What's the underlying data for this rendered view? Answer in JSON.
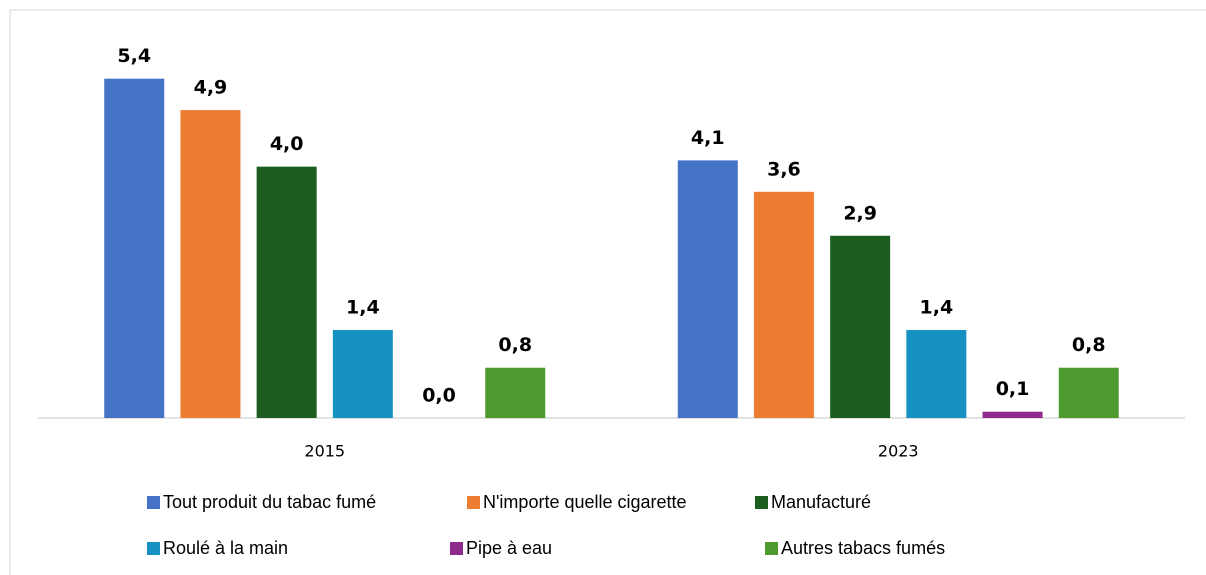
{
  "chart_data": {
    "type": "bar",
    "categories": [
      "2015",
      "2023"
    ],
    "series": [
      {
        "name": "Tout produit du tabac fumé",
        "color": "#4472c4",
        "values": [
          5.4,
          4.1
        ],
        "value_labels": [
          "5,4",
          "4,1"
        ]
      },
      {
        "name": "N'importe quelle cigarette",
        "color": "#ed7d31",
        "values": [
          4.9,
          3.6
        ],
        "value_labels": [
          "4,9",
          "3,6"
        ]
      },
      {
        "name": "Manufacturé",
        "color": "#1b5e20",
        "values": [
          4.0,
          2.9
        ],
        "value_labels": [
          "4,0",
          "2,9"
        ]
      },
      {
        "name": "Roulé à la main",
        "color": "#1591c4",
        "values": [
          1.4,
          1.4
        ],
        "value_labels": [
          "1,4",
          "1,4"
        ]
      },
      {
        "name": "Pipe à eau",
        "color": "#8e2b8c",
        "values": [
          0.0,
          0.1
        ],
        "value_labels": [
          "0,0",
          "0,1"
        ]
      },
      {
        "name": "Autres tabacs fumés",
        "color": "#4e9a2f",
        "values": [
          0.8,
          0.8
        ],
        "value_labels": [
          "0,8",
          "0,8"
        ]
      }
    ],
    "ylim": [
      0,
      6
    ]
  }
}
